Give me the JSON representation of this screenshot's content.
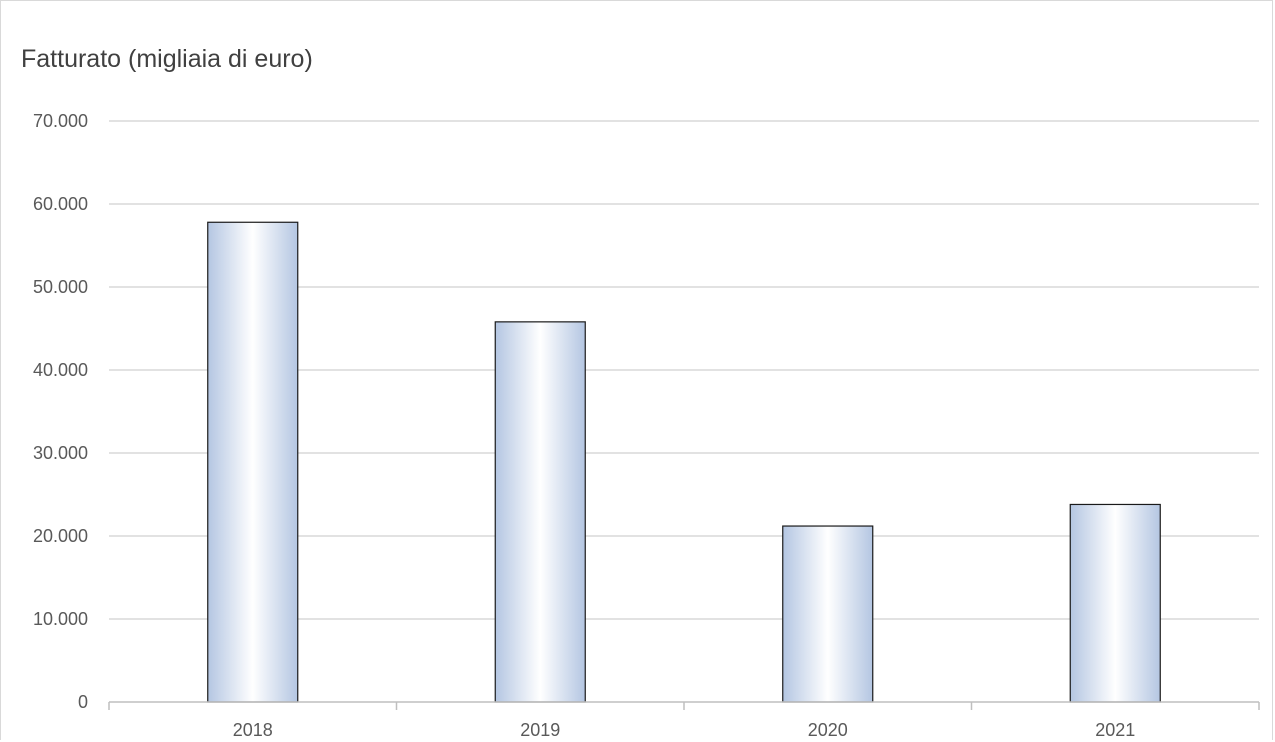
{
  "chart_data": {
    "type": "bar",
    "title": "Fatturato (migliaia di euro)",
    "xlabel": "",
    "ylabel": "",
    "categories": [
      "2018",
      "2019",
      "2020",
      "2021"
    ],
    "values": [
      57800,
      45800,
      21200,
      23800
    ],
    "ylim": [
      0,
      70000
    ],
    "yticks": [
      0,
      10000,
      20000,
      30000,
      40000,
      50000,
      60000,
      70000
    ],
    "ytick_labels": [
      "0",
      "10.000",
      "20.000",
      "30.000",
      "40.000",
      "50.000",
      "60.000",
      "70.000"
    ],
    "grid": true,
    "legend": "none",
    "colors": {
      "bar_edge": "#1a1a1a",
      "bar_light": "#ffffff",
      "bar_dark": "#b4c6e2",
      "grid": "#d9d9d9",
      "axis": "#bfbfbf",
      "text": "#595959"
    }
  }
}
